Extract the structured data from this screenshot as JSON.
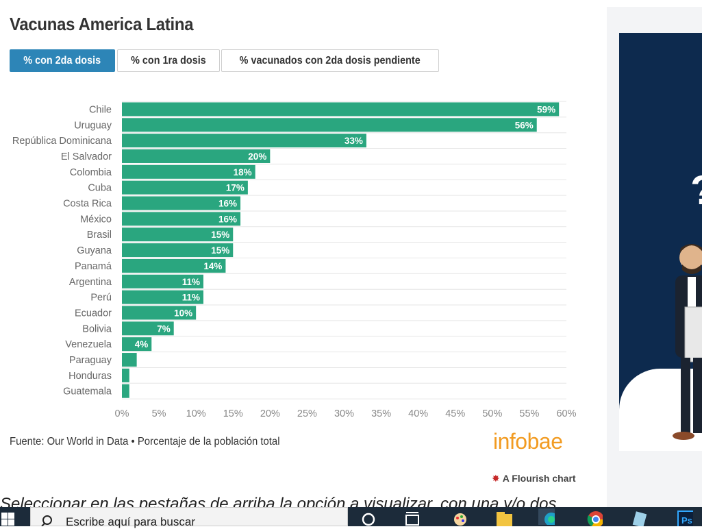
{
  "title": "Vacunas America Latina",
  "tabs": [
    {
      "label": "% con 2da dosis",
      "active": true
    },
    {
      "label": "% con 1ra dosis",
      "active": false
    },
    {
      "label": "% vacunados con 2da dosis pendiente",
      "active": false
    }
  ],
  "chart_data": {
    "type": "bar",
    "orientation": "horizontal",
    "categories": [
      "Chile",
      "Uruguay",
      "República Dominicana",
      "El Salvador",
      "Colombia",
      "Cuba",
      "Costa Rica",
      "México",
      "Brasil",
      "Guyana",
      "Panamá",
      "Argentina",
      "Perú",
      "Ecuador",
      "Bolivia",
      "Venezuela",
      "Paraguay",
      "Honduras",
      "Guatemala"
    ],
    "values": [
      59,
      56,
      33,
      20,
      18,
      17,
      16,
      16,
      15,
      15,
      14,
      11,
      11,
      10,
      7,
      4,
      2,
      1,
      1
    ],
    "data_labels": [
      "59%",
      "56%",
      "33%",
      "20%",
      "18%",
      "17%",
      "16%",
      "16%",
      "15%",
      "15%",
      "14%",
      "11%",
      "11%",
      "10%",
      "7%",
      "4%",
      "",
      "",
      ""
    ],
    "xlim": [
      0,
      60
    ],
    "x_ticks": [
      "0%",
      "5%",
      "10%",
      "15%",
      "20%",
      "25%",
      "30%",
      "35%",
      "40%",
      "45%",
      "50%",
      "55%",
      "60%"
    ],
    "bar_color": "#2aa67f",
    "grid": true
  },
  "footer": {
    "source": "Fuente: Our World in Data • Porcentaje de la población total",
    "logo": "infobae",
    "flourish": "A Flourish chart"
  },
  "article_text": "Seleccionar en las pestañas de arriba la opción a visualizar, con una y/o dos",
  "taskbar": {
    "search_placeholder": "Escribe aquí para buscar"
  },
  "colors": {
    "accent": "#2d85b7",
    "bars": "#2aa67f",
    "logo": "#f29b21",
    "ad_bg": "#0d2a4e"
  }
}
